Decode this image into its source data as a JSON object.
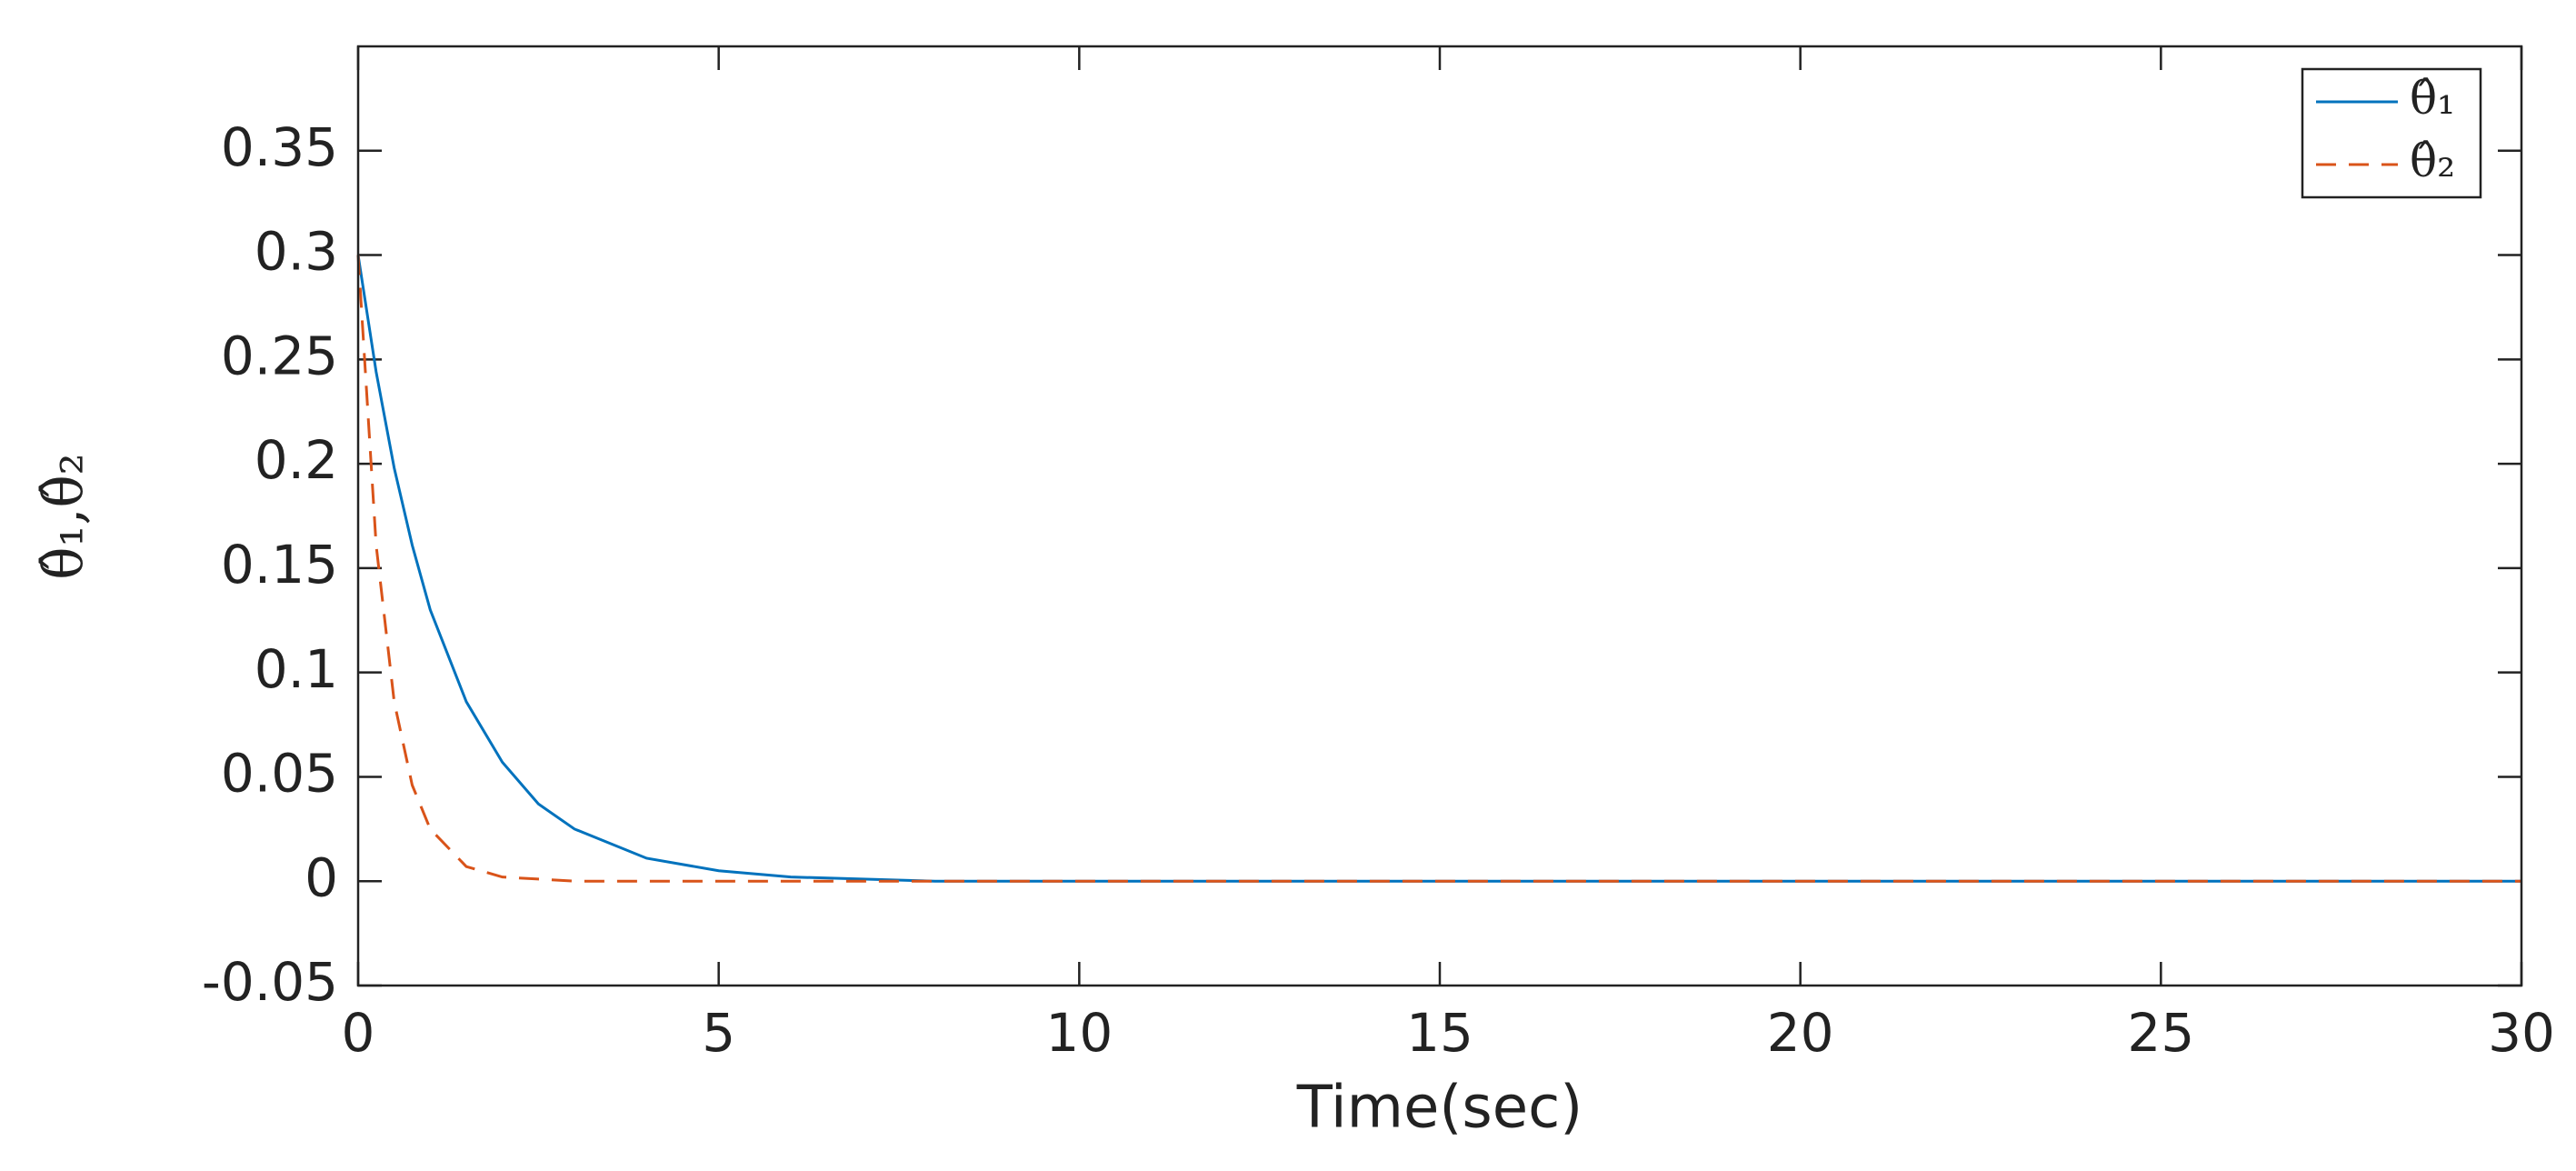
{
  "chart_data": {
    "type": "line",
    "x_label": "Time(sec)",
    "y_label": "θ̂₁,θ̂₂",
    "x": [
      0,
      0.25,
      0.5,
      0.75,
      1,
      1.5,
      2,
      2.5,
      3,
      4,
      5,
      6,
      8,
      10,
      15,
      20,
      25,
      30
    ],
    "series": [
      {
        "name": "θ̂₁",
        "color": "#0072bd",
        "dash": "solid",
        "values": [
          0.3,
          0.244,
          0.198,
          0.161,
          0.13,
          0.086,
          0.057,
          0.037,
          0.025,
          0.011,
          0.005,
          0.002,
          0,
          0,
          0,
          0,
          0,
          0
        ]
      },
      {
        "name": "θ̂₂",
        "color": "#d95319",
        "dash": "dashed",
        "values": [
          0.3,
          0.161,
          0.086,
          0.046,
          0.025,
          0.007,
          0.002,
          0.001,
          0,
          0,
          0,
          0,
          0,
          0,
          0,
          0,
          0,
          0
        ]
      }
    ],
    "xlim": [
      0,
      30
    ],
    "xticks": [
      0,
      5,
      10,
      15,
      20,
      25,
      30
    ],
    "ylim": [
      -0.05,
      0.4
    ],
    "yticks": [
      -0.05,
      0,
      0.05,
      0.1,
      0.15,
      0.2,
      0.25,
      0.3,
      0.35
    ],
    "legend": "northeast",
    "grid": false
  }
}
